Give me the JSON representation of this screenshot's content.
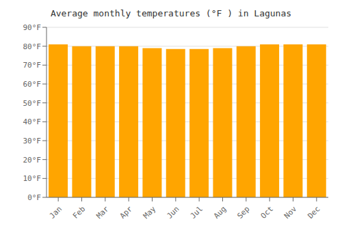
{
  "chart_data": {
    "type": "bar",
    "title": "Average monthly temperatures (°F ) in Lagunas",
    "categories": [
      "Jan",
      "Feb",
      "Mar",
      "Apr",
      "May",
      "Jun",
      "Jul",
      "Aug",
      "Sep",
      "Oct",
      "Nov",
      "Dec"
    ],
    "values": [
      81,
      80,
      80,
      80,
      79,
      78.5,
      78.5,
      79,
      80,
      81,
      81,
      81
    ],
    "color": "#FFA500",
    "ylim": [
      0,
      90
    ],
    "yticks": [
      {
        "value": 0,
        "label": "0°F"
      },
      {
        "value": 10,
        "label": "10°F"
      },
      {
        "value": 20,
        "label": "20°F"
      },
      {
        "value": 30,
        "label": "30°F"
      },
      {
        "value": 40,
        "label": "40°F"
      },
      {
        "value": 50,
        "label": "50°F"
      },
      {
        "value": 60,
        "label": "60°F"
      },
      {
        "value": 70,
        "label": "70°F"
      },
      {
        "value": 80,
        "label": "80°F"
      },
      {
        "value": 90,
        "label": "90°F"
      }
    ],
    "grid": true
  }
}
